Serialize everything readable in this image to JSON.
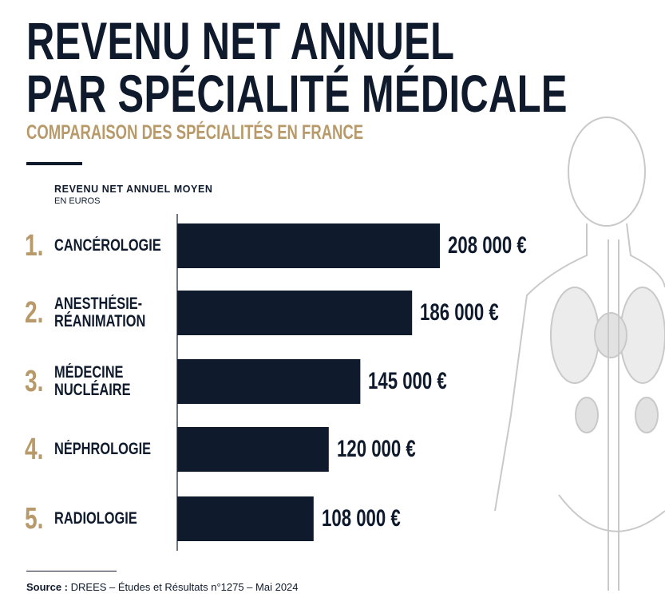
{
  "chart_data": {
    "type": "bar",
    "orientation": "horizontal",
    "title_lines": [
      "REVENU NET ANNUEL",
      "PAR SPÉCIALITÉ MÉDICALE"
    ],
    "subtitle": "COMPARAISON DES SPÉCIALITÉS EN FRANCE",
    "axis_title": "REVENU NET ANNUEL MOYEN",
    "axis_unit": "EN EUROS",
    "ranks": [
      "1.",
      "2.",
      "3.",
      "4.",
      "5."
    ],
    "categories": [
      "CANCÉROLOGIE",
      "ANESTHÉSIE-RÉANIMATION",
      "MÉDECINE NUCLÉAIRE",
      "NÉPHROLOGIE",
      "RADIOLOGIE"
    ],
    "values": [
      208000,
      186000,
      145000,
      120000,
      108000
    ],
    "value_labels": [
      "208 000 €",
      "186 000 €",
      "145 000 €",
      "120 000 €",
      "108 000 €"
    ],
    "color": "#0f1b2d",
    "xlim": [
      0,
      208000
    ],
    "source_label": "Source :",
    "source": "DREES – Études et Résultats n°1275 – Mai 2024"
  }
}
